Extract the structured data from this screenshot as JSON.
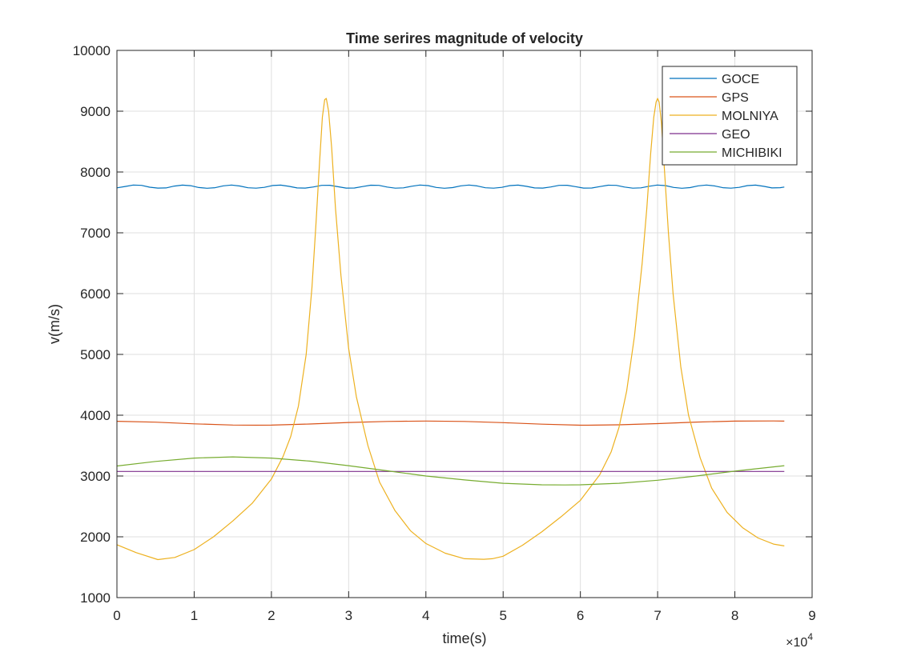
{
  "chart_data": {
    "type": "line",
    "title": "Time serires magnitude of velocity",
    "xlabel": "time(s)",
    "ylabel": "v(m/s)",
    "x_exponent_label": "×10",
    "x_exponent_power": "4",
    "xlim": [
      0,
      90000
    ],
    "ylim": [
      1000,
      10000
    ],
    "x_ticks": [
      0,
      10000,
      20000,
      30000,
      40000,
      50000,
      60000,
      70000,
      80000,
      90000
    ],
    "x_tick_labels": [
      "0",
      "1",
      "2",
      "3",
      "4",
      "5",
      "6",
      "7",
      "8",
      "9"
    ],
    "y_ticks": [
      1000,
      2000,
      3000,
      4000,
      5000,
      6000,
      7000,
      8000,
      9000,
      10000
    ],
    "y_tick_labels": [
      "1000",
      "2000",
      "3000",
      "4000",
      "5000",
      "6000",
      "7000",
      "8000",
      "9000",
      "10000"
    ],
    "grid": true,
    "legend_position": "top-right",
    "series": [
      {
        "name": "GOCE",
        "color": "#0072BD",
        "x": [
          0,
          1060,
          2120,
          3180,
          4240,
          5300,
          6360,
          7420,
          8480,
          9540,
          10600,
          11660,
          12720,
          13780,
          14840,
          15900,
          16960,
          18020,
          19080,
          20140,
          21200,
          22260,
          23320,
          24380,
          25440,
          26500,
          27560,
          28620,
          29680,
          30740,
          31800,
          32860,
          33920,
          34980,
          36040,
          37100,
          38160,
          39220,
          40280,
          41340,
          42400,
          43460,
          44520,
          45580,
          46640,
          47700,
          48760,
          49820,
          50880,
          51940,
          53000,
          54060,
          55120,
          56180,
          57240,
          58300,
          59360,
          60420,
          61480,
          62540,
          63600,
          64660,
          65720,
          66780,
          67840,
          68900,
          69960,
          71020,
          72080,
          73140,
          74200,
          75260,
          76320,
          77380,
          78440,
          79500,
          80560,
          81620,
          82680,
          83740,
          84800,
          85860,
          86400
        ],
        "y": [
          7740,
          7762,
          7785,
          7780,
          7750,
          7735,
          7738,
          7768,
          7784,
          7775,
          7745,
          7733,
          7742,
          7772,
          7785,
          7770,
          7741,
          7734,
          7748,
          7777,
          7784,
          7764,
          7738,
          7736,
          7754,
          7780,
          7782,
          7758,
          7735,
          7737,
          7760,
          7783,
          7780,
          7752,
          7734,
          7740,
          7766,
          7785,
          7776,
          7746,
          7733,
          7744,
          7772,
          7785,
          7771,
          7741,
          7734,
          7748,
          7776,
          7784,
          7765,
          7738,
          7735,
          7754,
          7780,
          7782,
          7759,
          7736,
          7737,
          7760,
          7783,
          7780,
          7752,
          7734,
          7740,
          7766,
          7785,
          7776,
          7746,
          7733,
          7744,
          7772,
          7785,
          7771,
          7742,
          7734,
          7748,
          7776,
          7784,
          7765,
          7738,
          7742,
          7752
        ]
      },
      {
        "name": "GPS",
        "color": "#D95319",
        "x": [
          0,
          5000,
          10000,
          15000,
          18000,
          20000,
          25000,
          30000,
          35000,
          40000,
          45000,
          50000,
          55000,
          60000,
          61000,
          65000,
          70000,
          75000,
          80000,
          85000,
          86400
        ],
        "y": [
          3900,
          3885,
          3858,
          3838,
          3835,
          3837,
          3855,
          3880,
          3898,
          3904,
          3897,
          3878,
          3853,
          3836,
          3835,
          3842,
          3862,
          3887,
          3902,
          3905,
          3902
        ]
      },
      {
        "name": "MOLNIYA",
        "color": "#EDB120",
        "x": [
          0,
          2500,
          5300,
          7500,
          10000,
          12500,
          15000,
          17500,
          20000,
          21500,
          22500,
          23500,
          24500,
          25250,
          25750,
          26250,
          26600,
          26900,
          27100,
          27400,
          27800,
          28300,
          29000,
          30000,
          31000,
          32500,
          34000,
          36000,
          38000,
          40000,
          42500,
          45000,
          47500,
          48600,
          50000,
          52500,
          55000,
          57500,
          60000,
          62500,
          64000,
          65000,
          66000,
          67000,
          68000,
          68600,
          69100,
          69500,
          69800,
          70000,
          70200,
          70500,
          70900,
          71400,
          72000,
          73000,
          74000,
          75500,
          77000,
          79000,
          81000,
          83000,
          85000,
          86400
        ],
        "y": [
          1870,
          1740,
          1625,
          1660,
          1790,
          2000,
          2260,
          2550,
          2950,
          3320,
          3650,
          4150,
          5000,
          6100,
          7100,
          8200,
          8900,
          9190,
          9210,
          9000,
          8400,
          7400,
          6300,
          5100,
          4300,
          3500,
          2900,
          2430,
          2100,
          1890,
          1730,
          1640,
          1630,
          1640,
          1680,
          1860,
          2080,
          2330,
          2600,
          3020,
          3400,
          3800,
          4400,
          5300,
          6500,
          7400,
          8300,
          8900,
          9150,
          9210,
          9150,
          8800,
          8000,
          7000,
          6000,
          4800,
          4000,
          3300,
          2800,
          2400,
          2150,
          1980,
          1880,
          1850
        ]
      },
      {
        "name": "GEO",
        "color": "#7E2F8E",
        "x": [
          0,
          86400
        ],
        "y": [
          3075,
          3075
        ]
      },
      {
        "name": "MICHIBIKI",
        "color": "#77AC30",
        "x": [
          0,
          5000,
          10000,
          15000,
          20000,
          25000,
          30000,
          35000,
          40000,
          45000,
          50000,
          55000,
          58000,
          60000,
          65000,
          70000,
          75000,
          80000,
          86400
        ],
        "y": [
          3165,
          3240,
          3295,
          3315,
          3295,
          3245,
          3170,
          3085,
          3000,
          2935,
          2880,
          2855,
          2852,
          2855,
          2880,
          2930,
          3000,
          3080,
          3170
        ]
      }
    ]
  }
}
